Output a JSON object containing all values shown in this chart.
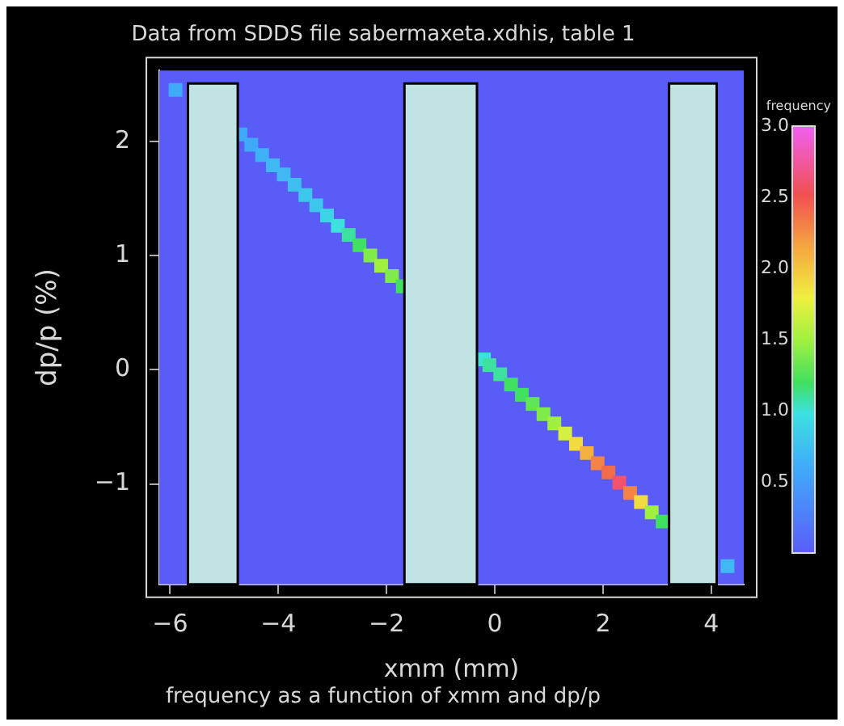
{
  "chart_data": {
    "type": "scatter",
    "title": "Data from SDDS file sabermaxeta.xdhis, table 1",
    "xlabel": "xmm (mm)",
    "ylabel": "dp/p (%)",
    "clabel": "frequency",
    "annotations": [
      "frequency as a function of xmm and dp/p"
    ],
    "x": [
      -5.9,
      -4.7,
      -4.5,
      -4.3,
      -4.1,
      -3.9,
      -3.7,
      -3.5,
      -3.3,
      -3.1,
      -2.9,
      -2.7,
      -2.5,
      -2.3,
      -2.1,
      -1.9,
      -1.7,
      -0.2,
      -0.1,
      0.1,
      0.3,
      0.5,
      0.7,
      0.9,
      1.1,
      1.3,
      1.5,
      1.7,
      1.9,
      2.1,
      2.3,
      2.5,
      2.7,
      2.9,
      3.1,
      4.3
    ],
    "values": [
      2.45,
      2.06,
      1.97,
      1.88,
      1.79,
      1.71,
      1.62,
      1.53,
      1.44,
      1.35,
      1.26,
      1.18,
      1.09,
      1.0,
      0.91,
      0.82,
      0.73,
      0.09,
      0.04,
      -0.04,
      -0.13,
      -0.22,
      -0.3,
      -0.39,
      -0.47,
      -0.56,
      -0.65,
      -0.73,
      -0.82,
      -0.9,
      -0.99,
      -1.08,
      -1.16,
      -1.25,
      -1.33,
      -1.72
    ],
    "cvalues": [
      0.6,
      0.6,
      0.6,
      0.65,
      0.7,
      0.7,
      0.75,
      0.8,
      0.8,
      0.9,
      1.0,
      1.1,
      1.2,
      1.4,
      1.5,
      1.4,
      1.2,
      1.0,
      1.1,
      1.1,
      1.2,
      1.2,
      1.3,
      1.4,
      1.5,
      1.7,
      1.9,
      2.1,
      2.3,
      2.4,
      2.6,
      2.3,
      1.9,
      1.5,
      1.2,
      0.7
    ],
    "clim": [
      0,
      3.0
    ],
    "cticks": [
      0.5,
      {
        "value": 1,
        "label": "1.0"
      },
      1.5,
      {
        "value": 2,
        "label": "2.0"
      },
      2.5,
      {
        "value": 3,
        "label": "3.0"
      }
    ],
    "xlim": [
      -6.2,
      4.6
    ],
    "xticks": [
      -6,
      -4,
      -2,
      0,
      2,
      4
    ],
    "ylim": [
      -1.88,
      2.62
    ],
    "yticks": [
      -1,
      0,
      1,
      2
    ],
    "bands": [
      {
        "axis": "x",
        "from": -5.67,
        "to": -4.75,
        "color": "#c0e4e4"
      },
      {
        "axis": "x",
        "from": -1.67,
        "to": -0.33,
        "color": "#c0e4e4"
      },
      {
        "axis": "x",
        "from": 3.22,
        "to": 4.1,
        "color": "#c0e4e4"
      }
    ],
    "marker": "square",
    "grid": false,
    "legend": false
  }
}
